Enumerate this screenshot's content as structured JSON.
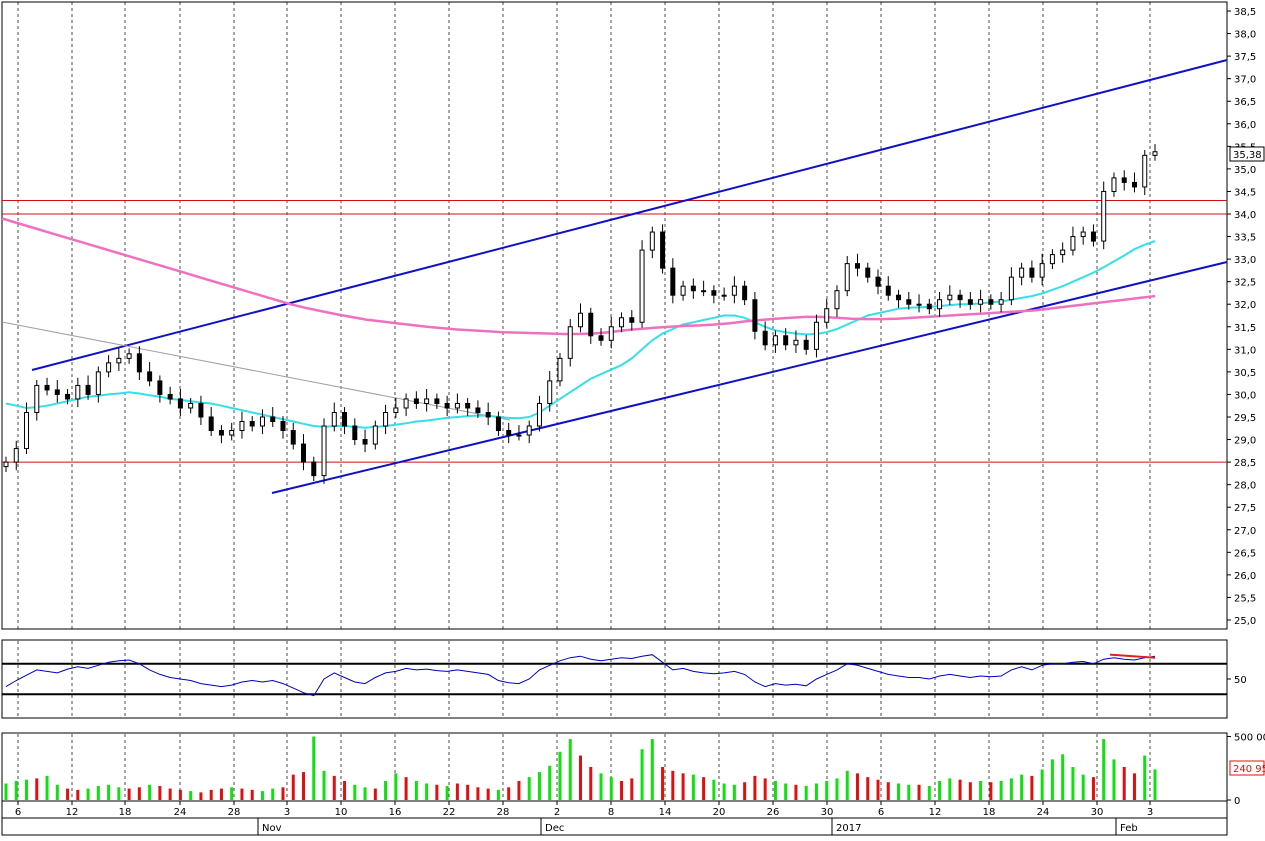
{
  "colors": {
    "background": "#ffffff",
    "grid": "#000000",
    "candle_up": "#ffffff",
    "candle_down": "#000000",
    "channel": "#1010c8",
    "ma_short": "#33e0e8",
    "ma_long": "#f070c0",
    "support_lines": "#d01010",
    "rsi_line": "#0000c0",
    "rsi_bounds": "#000000",
    "rsi_divergence": "#e02020",
    "volume_up": "#10e010",
    "volume_down": "#e01010",
    "last_price_box": "#000000",
    "volume_box": "#e01010"
  },
  "chart_data": [
    {
      "type": "candlestick",
      "panel": "price",
      "y_axis": {
        "ticks": [
          "38,5",
          "38,0",
          "37,5",
          "37,0",
          "36,5",
          "36,0",
          "35,5",
          "35,0",
          "34,5",
          "34,0",
          "33,5",
          "33,0",
          "32,5",
          "32,0",
          "31,5",
          "31,0",
          "30,5",
          "30,0",
          "29,5",
          "29,0",
          "28,5",
          "28,0",
          "27,5",
          "27,0",
          "26,5",
          "26,0",
          "25,5",
          "25,0"
        ],
        "ylim": [
          24.8,
          38.7
        ]
      },
      "last_price_label": "35,38",
      "horizontal_levels": [
        34.3,
        34.0,
        28.5
      ],
      "series_close": [
        28.5,
        28.8,
        29.6,
        30.2,
        30.1,
        30.0,
        29.9,
        30.2,
        30.0,
        30.5,
        30.7,
        30.8,
        30.9,
        30.5,
        30.3,
        30.0,
        29.9,
        29.7,
        29.8,
        29.5,
        29.2,
        29.1,
        29.2,
        29.4,
        29.3,
        29.5,
        29.4,
        29.2,
        28.9,
        28.5,
        28.2,
        29.3,
        29.6,
        29.3,
        29.0,
        28.9,
        29.3,
        29.6,
        29.7,
        29.9,
        29.8,
        29.9,
        29.8,
        29.7,
        29.8,
        29.7,
        29.6,
        29.5,
        29.2,
        29.1,
        29.1,
        29.3,
        29.8,
        30.3,
        30.8,
        31.5,
        31.8,
        31.3,
        31.2,
        31.5,
        31.7,
        31.6,
        33.2,
        33.6,
        32.8,
        32.2,
        32.4,
        32.3,
        32.3,
        32.2,
        32.2,
        32.4,
        32.1,
        31.4,
        31.1,
        31.3,
        31.1,
        31.2,
        31.0,
        31.6,
        31.9,
        32.3,
        32.9,
        32.8,
        32.6,
        32.4,
        32.2,
        32.1,
        32.0,
        32.0,
        31.9,
        32.1,
        32.2,
        32.1,
        32.0,
        32.1,
        32.0,
        32.1,
        32.6,
        32.8,
        32.6,
        32.9,
        33.1,
        33.2,
        33.5,
        33.6,
        33.4,
        34.5,
        34.8,
        34.7,
        34.6,
        35.3,
        35.38
      ],
      "series": [
        {
          "name": "",
          "type": "line",
          "values": [
            29.8,
            29.75,
            29.7,
            29.72,
            29.75,
            29.8,
            29.85,
            29.9,
            29.95,
            29.97,
            30.0,
            30.02,
            30.05,
            30.02,
            29.98,
            29.95,
            29.9,
            29.88,
            29.85,
            29.82,
            29.8,
            29.75,
            29.7,
            29.65,
            29.6,
            29.55,
            29.5,
            29.45,
            29.4,
            29.35,
            29.3,
            29.28,
            29.3,
            29.3,
            29.28,
            29.26,
            29.28,
            29.3,
            29.33,
            29.36,
            29.4,
            29.42,
            29.45,
            29.48,
            29.5,
            29.52,
            29.53,
            29.53,
            29.5,
            29.48,
            29.47,
            29.5,
            29.6,
            29.75,
            29.9,
            30.05,
            30.2,
            30.35,
            30.45,
            30.55,
            30.65,
            30.8,
            31.0,
            31.2,
            31.35,
            31.45,
            31.55,
            31.6,
            31.65,
            31.7,
            31.75,
            31.75,
            31.7,
            31.6,
            31.5,
            31.42,
            31.38,
            31.35,
            31.33,
            31.34,
            31.38,
            31.45,
            31.55,
            31.65,
            31.75,
            31.8,
            31.85,
            31.9,
            31.92,
            31.93,
            31.94,
            31.96,
            31.98,
            32.0,
            32.0,
            32.02,
            32.04,
            32.06,
            32.1,
            32.14,
            32.18,
            32.24,
            32.32,
            32.4,
            32.5,
            32.6,
            32.7,
            32.82,
            32.95,
            33.08,
            33.22,
            33.32,
            33.4
          ]
        },
        {
          "name": "",
          "type": "line",
          "values": [
            33.9,
            33.8,
            33.7,
            33.6,
            33.5,
            33.4,
            33.3,
            33.2,
            33.1,
            33.0,
            32.9,
            32.8,
            32.7,
            32.6,
            32.5,
            32.4,
            32.3,
            32.2,
            32.1,
            32.0,
            31.92,
            31.85,
            31.78,
            31.72,
            31.66,
            31.62,
            31.58,
            31.54,
            31.5,
            31.47,
            31.44,
            31.42,
            31.4,
            31.38,
            31.37,
            31.36,
            31.35,
            31.34,
            31.34,
            31.35,
            31.38,
            31.42,
            31.45,
            31.48,
            31.5,
            31.52,
            31.53,
            31.55,
            31.58,
            31.62,
            31.65,
            31.68,
            31.7,
            31.72,
            31.72,
            31.7,
            31.68,
            31.67,
            31.67,
            31.68,
            31.7,
            31.72,
            31.74,
            31.76,
            31.78,
            31.8,
            31.82,
            31.84,
            31.86,
            31.9,
            31.94,
            31.98,
            32.02,
            32.06,
            32.1,
            32.14,
            32.18
          ]
        }
      ],
      "x_axis": {
        "day_ticks": [
          "6",
          "12",
          "18",
          "24",
          "28",
          "3",
          "10",
          "16",
          "22",
          "28",
          "2",
          "8",
          "14",
          "20",
          "26",
          "30",
          "6",
          "12",
          "18",
          "24",
          "30",
          "3"
        ],
        "month_labels": [
          "Nov",
          "Dec",
          "2017",
          "Feb"
        ]
      }
    },
    {
      "type": "line",
      "panel": "oscillator",
      "y_axis": {
        "ticks": [
          "50"
        ],
        "ylim": [
          0,
          100
        ]
      },
      "reference_levels": [
        70,
        30
      ],
      "values": [
        40,
        48,
        55,
        62,
        60,
        58,
        63,
        66,
        64,
        68,
        72,
        74,
        75,
        70,
        62,
        56,
        52,
        50,
        48,
        44,
        42,
        40,
        42,
        46,
        48,
        46,
        48,
        44,
        38,
        32,
        28,
        50,
        58,
        52,
        46,
        44,
        52,
        58,
        60,
        64,
        62,
        63,
        61,
        60,
        62,
        60,
        58,
        56,
        48,
        45,
        44,
        50,
        62,
        68,
        74,
        78,
        80,
        76,
        74,
        76,
        78,
        77,
        80,
        82,
        72,
        62,
        64,
        60,
        58,
        57,
        58,
        60,
        56,
        46,
        40,
        44,
        42,
        43,
        41,
        50,
        56,
        62,
        70,
        68,
        64,
        60,
        56,
        54,
        52,
        52,
        50,
        54,
        56,
        54,
        52,
        54,
        53,
        54,
        62,
        66,
        62,
        68,
        70,
        70,
        72,
        73,
        70,
        76,
        78,
        76,
        75,
        78,
        80
      ]
    },
    {
      "type": "bar",
      "panel": "volume",
      "y_axis": {
        "ticks": [
          "500 00",
          "0"
        ],
        "ylim": [
          0,
          520000
        ]
      },
      "last_volume_label": "240 95",
      "values": [
        130000,
        150000,
        160000,
        170000,
        190000,
        120000,
        90000,
        80000,
        90000,
        110000,
        120000,
        100000,
        90000,
        100000,
        120000,
        110000,
        90000,
        80000,
        70000,
        60000,
        80000,
        90000,
        100000,
        90000,
        80000,
        70000,
        90000,
        100000,
        200000,
        220000,
        500000,
        230000,
        190000,
        150000,
        120000,
        100000,
        90000,
        150000,
        210000,
        180000,
        150000,
        130000,
        120000,
        110000,
        130000,
        120000,
        100000,
        90000,
        80000,
        100000,
        150000,
        180000,
        220000,
        270000,
        380000,
        480000,
        350000,
        260000,
        210000,
        180000,
        150000,
        170000,
        400000,
        480000,
        260000,
        230000,
        210000,
        200000,
        180000,
        160000,
        130000,
        120000,
        140000,
        190000,
        170000,
        150000,
        130000,
        120000,
        110000,
        130000,
        150000,
        170000,
        230000,
        210000,
        180000,
        160000,
        140000,
        130000,
        120000,
        120000,
        110000,
        150000,
        170000,
        160000,
        140000,
        150000,
        140000,
        150000,
        170000,
        200000,
        190000,
        240000,
        320000,
        360000,
        260000,
        200000,
        180000,
        480000,
        320000,
        260000,
        210000,
        350000,
        240950
      ],
      "up_flags": [
        1,
        1,
        1,
        0,
        1,
        1,
        0,
        0,
        1,
        1,
        1,
        1,
        0,
        0,
        1,
        0,
        0,
        0,
        1,
        0,
        0,
        0,
        1,
        0,
        0,
        1,
        1,
        0,
        0,
        0,
        1,
        1,
        0,
        0,
        1,
        1,
        0,
        1,
        1,
        0,
        1,
        1,
        0,
        1,
        0,
        0,
        0,
        0,
        1,
        0,
        0,
        1,
        1,
        1,
        1,
        1,
        0,
        0,
        1,
        1,
        0,
        0,
        1,
        1,
        0,
        0,
        0,
        1,
        0,
        1,
        1,
        1,
        0,
        0,
        0,
        1,
        1,
        0,
        1,
        1,
        1,
        1,
        1,
        0,
        0,
        0,
        0,
        1,
        1,
        0,
        1,
        1,
        1,
        0,
        0,
        1,
        0,
        1,
        1,
        1,
        0,
        1,
        1,
        1,
        1,
        1,
        0,
        1,
        1,
        0,
        0,
        1,
        1
      ]
    }
  ]
}
